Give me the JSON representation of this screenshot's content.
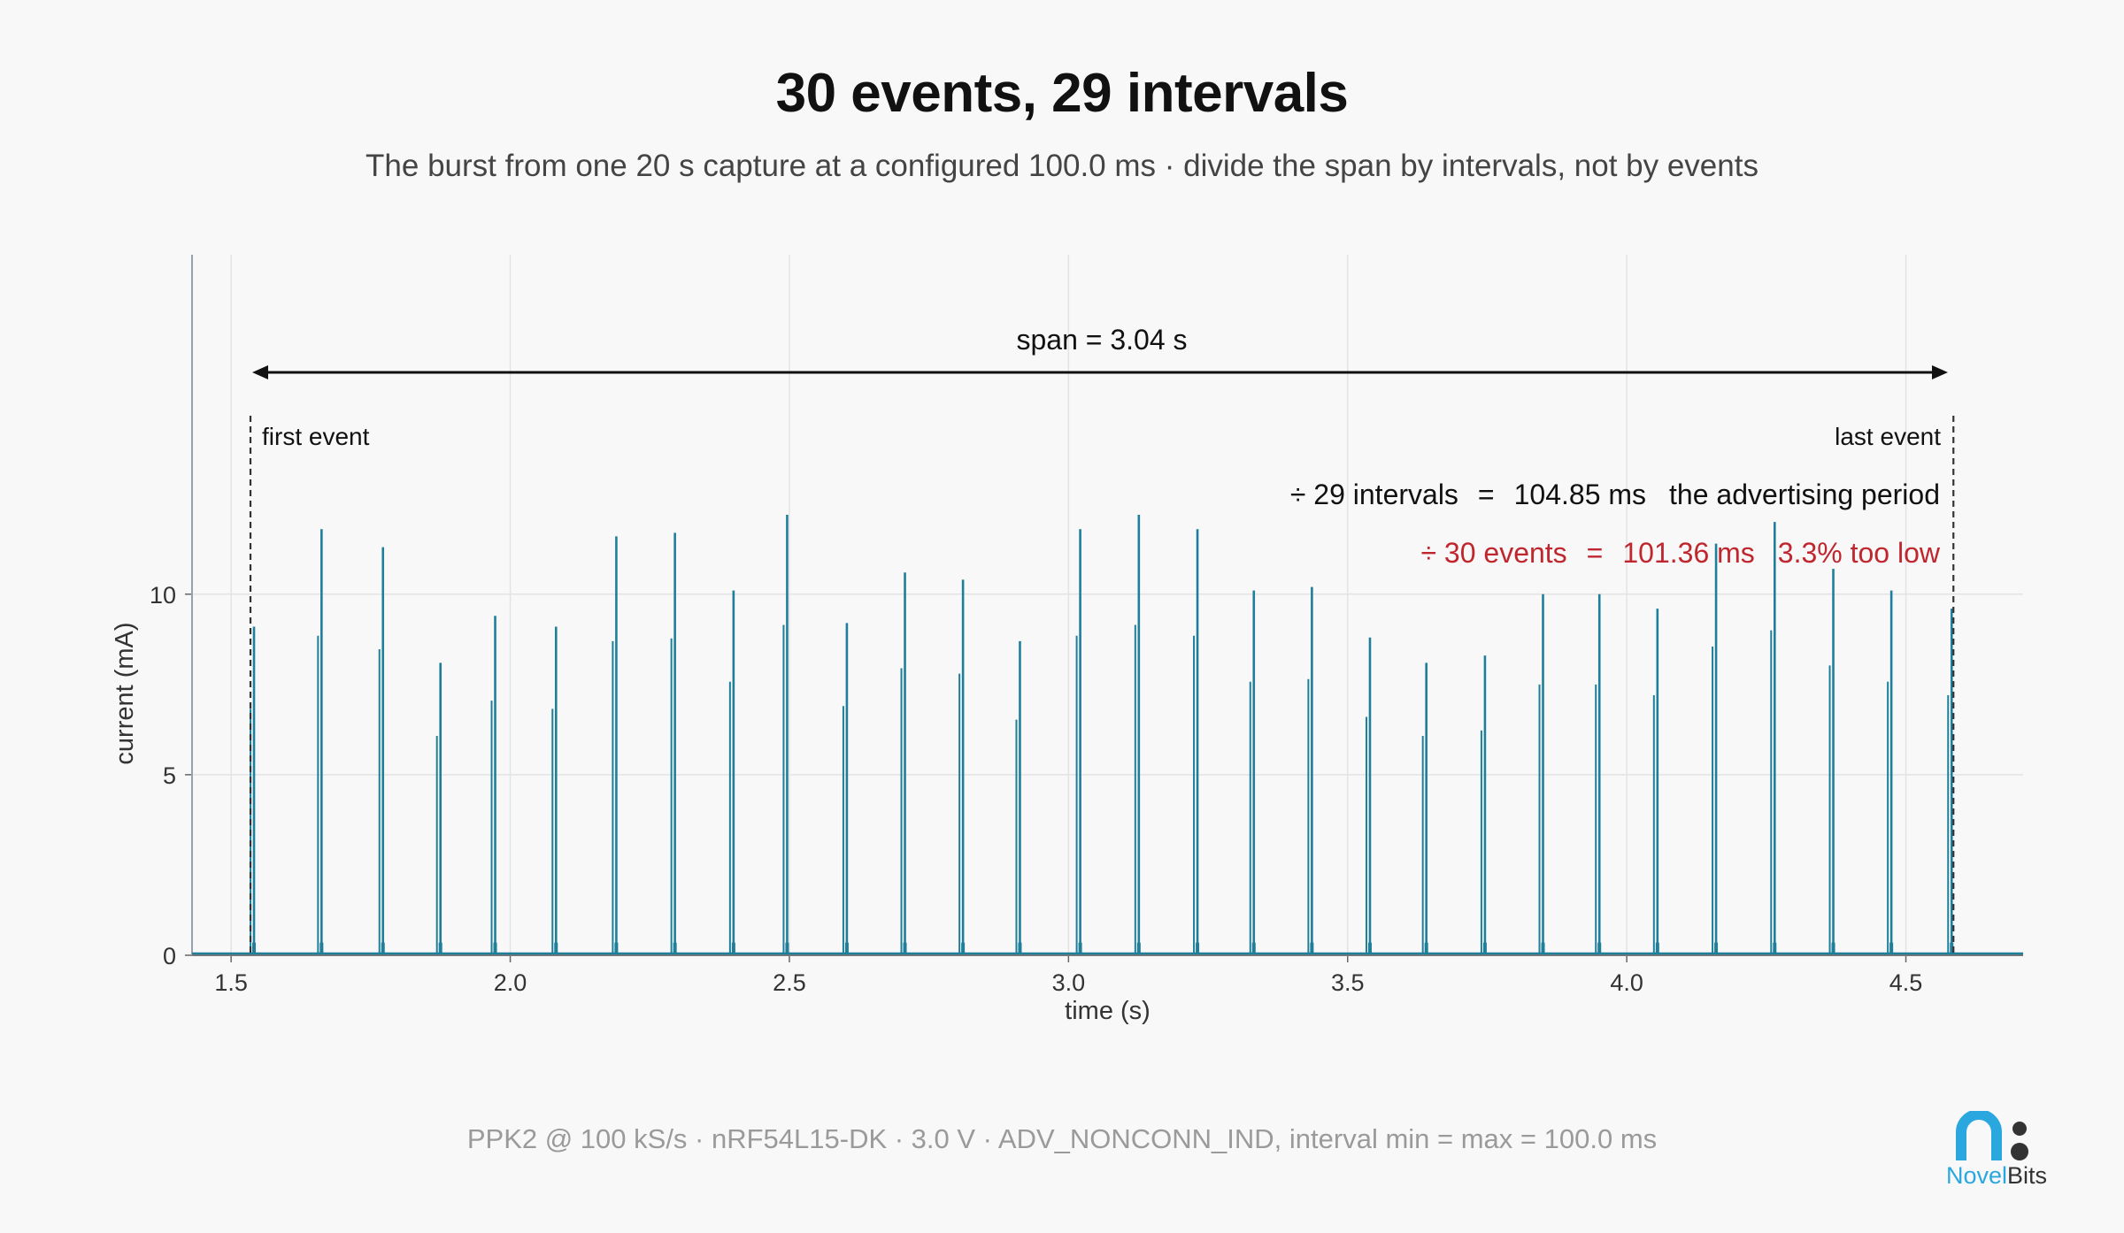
{
  "title": "30 events, 29 intervals",
  "subtitle": "The burst from one 20 s capture at a configured 100.0 ms · divide the span by intervals, not by events",
  "footer": "PPK2 @ 100 kS/s · nRF54L15-DK · 3.0 V · ADV_NONCONN_IND, interval min = max = 100.0 ms",
  "brand": {
    "word1": "Novel",
    "word2": "Bits"
  },
  "annotations": {
    "span": "span = 3.04 s",
    "first_event": "first event",
    "last_event": "last event",
    "intervals_div": "÷ 29 intervals",
    "intervals_eq": "=",
    "intervals_value": "104.85 ms",
    "intervals_note": "the advertising period",
    "events_div": "÷ 30 events",
    "events_eq": "=",
    "events_value": "101.36 ms",
    "events_note": "3.3% too low"
  },
  "colors": {
    "trace": "#1f7f9a",
    "error": "#c0262d",
    "grid": "#e3e3e3",
    "brand_blue": "#2aa7df",
    "brand_dark": "#333333"
  },
  "chart_data": {
    "type": "line",
    "xlabel": "time (s)",
    "ylabel": "current (mA)",
    "xlim": [
      1.43,
      4.71
    ],
    "ylim": [
      0,
      19.4
    ],
    "xticks": [
      1.5,
      2.0,
      2.5,
      3.0,
      3.5,
      4.0,
      4.5
    ],
    "xtick_labels": [
      "1.5",
      "2.0",
      "2.5",
      "3.0",
      "3.5",
      "4.0",
      "4.5"
    ],
    "yticks": [
      0,
      5,
      10
    ],
    "ytick_labels": [
      "0",
      "5",
      "10"
    ],
    "grid": true,
    "first_event_t": 1.541,
    "last_event_t": 4.582,
    "series": [
      {
        "event_times": [
          1.541,
          1.662,
          1.772,
          1.875,
          1.973,
          2.082,
          2.19,
          2.295,
          2.4,
          2.496,
          2.603,
          2.707,
          2.811,
          2.913,
          3.021,
          3.126,
          3.231,
          3.332,
          3.436,
          3.54,
          3.641,
          3.746,
          3.85,
          3.951,
          4.055,
          4.16,
          4.265,
          4.37,
          4.474,
          4.582
        ],
        "peak_currents": [
          9.1,
          11.8,
          11.3,
          8.1,
          9.4,
          9.1,
          11.6,
          11.7,
          10.1,
          12.2,
          9.2,
          10.6,
          10.4,
          8.7,
          11.8,
          12.2,
          11.8,
          10.1,
          10.2,
          8.8,
          8.1,
          8.3,
          10.0,
          10.0,
          9.6,
          11.4,
          12.0,
          10.7,
          10.1,
          9.6
        ]
      }
    ]
  }
}
